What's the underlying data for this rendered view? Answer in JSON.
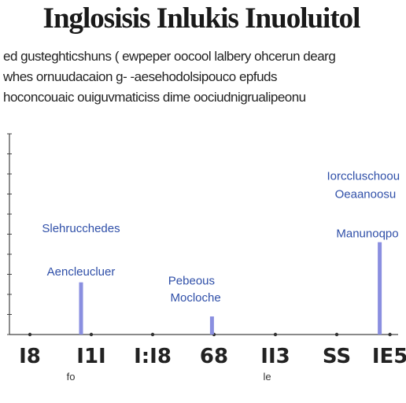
{
  "title": "Inglosisis Inlukis Inuoluitol",
  "subtitle_lines": [
    "ed gusteghticshuns ( ewpeper oocool lalbery ohcerun dearg",
    "whes ornuudacaion g- -aesehodolsipouco epfuds",
    "hoconcouaic ouiguvmaticiss dime oociudnigrualipeonu"
  ],
  "chart_data": {
    "type": "bar",
    "title": "",
    "xlabel": "",
    "ylabel": "",
    "grid": false,
    "xlim": [
      0,
      9.5
    ],
    "ylim": [
      0,
      10
    ],
    "categories": [
      "I8",
      "I1I",
      "I:I8",
      "68",
      "II3",
      "SS",
      "IE5"
    ],
    "category_positions": [
      0.5,
      2,
      3.5,
      5,
      6.5,
      8,
      9.3
    ],
    "x_sublabels": [
      {
        "text": "fo",
        "x": 1.5
      },
      {
        "text": "le",
        "x": 6.3
      }
    ],
    "series": [
      {
        "values": [
          {
            "x": 1.75,
            "y": 2.6
          },
          {
            "x": 4.95,
            "y": 0.9
          },
          {
            "x": 9.05,
            "y": 4.6
          }
        ]
      }
    ],
    "annotations": [
      {
        "text": "Slehrucchedes",
        "x": 1.75,
        "y": 5.1
      },
      {
        "text": "Aencleucluer",
        "x": 1.75,
        "y": 2.95
      },
      {
        "text": "Pebeous",
        "x": 4.45,
        "y": 2.5
      },
      {
        "text": "Mocloche",
        "x": 4.55,
        "y": 1.65
      },
      {
        "text": "Iorccluschoou",
        "x": 8.65,
        "y": 7.7
      },
      {
        "text": "Oeaanoosu",
        "x": 8.7,
        "y": 6.8
      },
      {
        "text": "Manunoqpo",
        "x": 8.75,
        "y": 4.85
      }
    ],
    "bar_color": "#8a8fe0",
    "annotation_color": "#2f4fa8"
  }
}
